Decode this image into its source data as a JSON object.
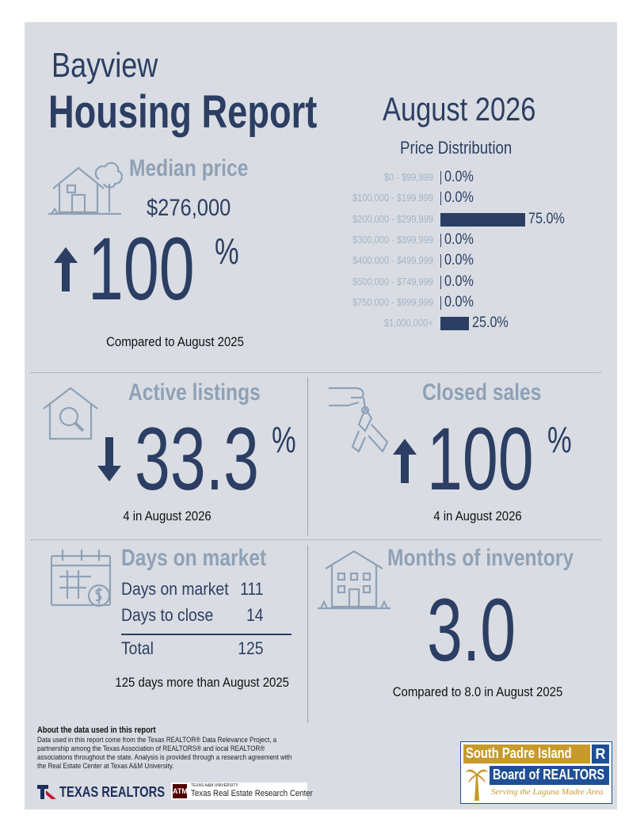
{
  "header": {
    "city": "Bayview",
    "title": "Housing Report",
    "month": "August 2026"
  },
  "median_price": {
    "heading": "Median price",
    "value": "$276,000",
    "change": "100",
    "pct_sign": "%",
    "direction": "up",
    "caption": "Compared to August 2025"
  },
  "price_distribution": {
    "title": "Price Distribution",
    "rows": [
      {
        "label": "$0 - $99,999",
        "value": "0.0%",
        "pct": 0
      },
      {
        "label": "$100,000 - $199,999",
        "value": "0.0%",
        "pct": 0
      },
      {
        "label": "$200,000 - $299,999",
        "value": "75.0%",
        "pct": 75
      },
      {
        "label": "$300,000 - $399,999",
        "value": "0.0%",
        "pct": 0
      },
      {
        "label": "$400,000 - $499,999",
        "value": "0.0%",
        "pct": 0
      },
      {
        "label": "$500,000 - $749,999",
        "value": "0.0%",
        "pct": 0
      },
      {
        "label": "$750,000 - $999,999",
        "value": "0.0%",
        "pct": 0
      },
      {
        "label": "$1,000,000+",
        "value": "25.0%",
        "pct": 25
      }
    ]
  },
  "active_listings": {
    "heading": "Active listings",
    "change": "33.3",
    "pct_sign": "%",
    "direction": "down",
    "caption": "4 in August 2026"
  },
  "closed_sales": {
    "heading": "Closed sales",
    "change": "100",
    "pct_sign": "%",
    "direction": "up",
    "caption": "4 in August 2026"
  },
  "days_on_market": {
    "heading": "Days on market",
    "rows": [
      {
        "label": "Days on market",
        "value": "111"
      },
      {
        "label": "Days to close",
        "value": "14"
      }
    ],
    "total_label": "Total",
    "total_value": "125",
    "caption": "125 days more than August 2025"
  },
  "months_inventory": {
    "heading": "Months of inventory",
    "value": "3.0",
    "caption": "Compared to 8.0 in August 2025"
  },
  "about": {
    "heading": "About the data used in this report",
    "text": "Data used in this report come from the Texas REALTOR® Data Relevance Project, a partnership among the Texas Association of REALTORS® and local REALTOR® associations throughout the state. Analysis is provided through a research agreement with the Real Estate Center at Texas A&M University."
  },
  "logos": {
    "texas_realtors": "TEXAS REALTORS",
    "tamu_small": "TEXAS A&M UNIVERSITY",
    "tamu_center": "Texas Real Estate Research Center",
    "board_line1": "South Padre Island",
    "board_line2": "Board of REALTORS",
    "board_line3": "Serving the Laguna Madre Area"
  },
  "colors": {
    "navy": "#2c3e63",
    "grey_blue": "#8fa1b6",
    "background": "#d9dde3",
    "board_gold": "#c79a2b",
    "board_blue": "#1f4f96"
  }
}
